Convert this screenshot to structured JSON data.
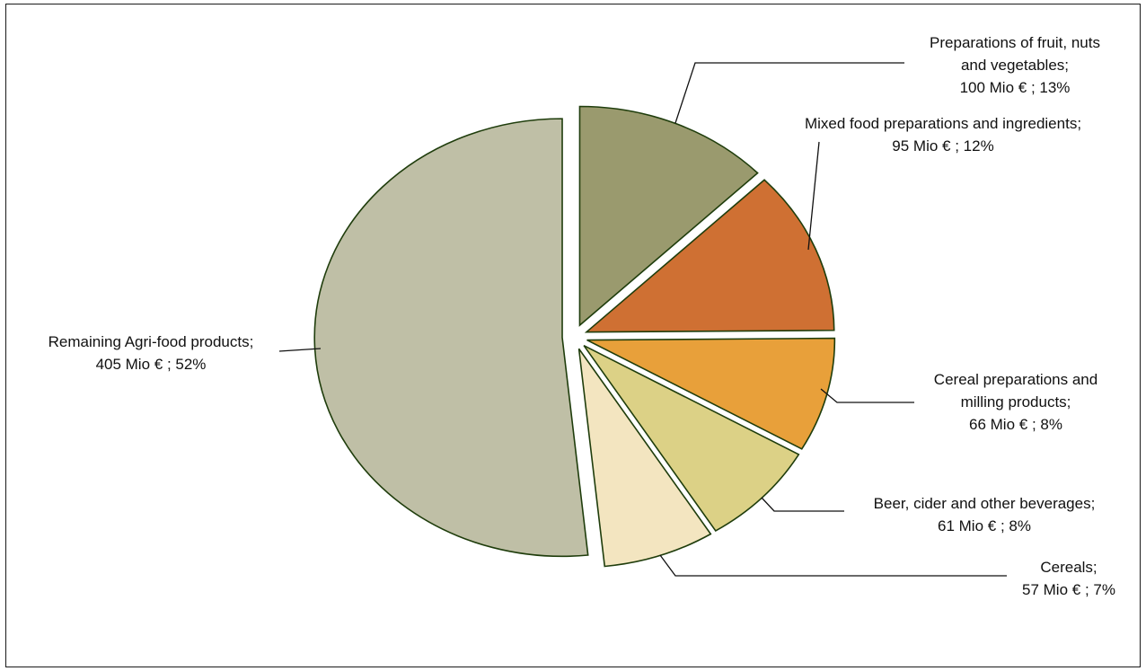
{
  "chart_data": {
    "type": "pie",
    "title": "",
    "unit": "Mio €",
    "slices": [
      {
        "key": "fruit",
        "label_lines": [
          "Preparations of fruit, nuts",
          "and vegetables;",
          "100 Mio € ; 13%"
        ],
        "value": 100,
        "percent": 13,
        "color": "#9a9a6e"
      },
      {
        "key": "mixed",
        "label_lines": [
          "Mixed food preparations and ingredients;",
          "95 Mio € ; 12%"
        ],
        "value": 95,
        "percent": 12,
        "color": "#cf7033"
      },
      {
        "key": "cerealprep",
        "label_lines": [
          "Cereal preparations and",
          "milling products;",
          "66 Mio € ; 8%"
        ],
        "value": 66,
        "percent": 8,
        "color": "#e8a03a"
      },
      {
        "key": "beer",
        "label_lines": [
          "Beer, cider and other beverages;",
          "61 Mio € ; 8%"
        ],
        "value": 61,
        "percent": 8,
        "color": "#dcd186"
      },
      {
        "key": "cereals",
        "label_lines": [
          "Cereals;",
          "57 Mio € ; 7%"
        ],
        "value": 57,
        "percent": 7,
        "color": "#f3e5c0"
      },
      {
        "key": "remaining",
        "label_lines": [
          "Remaining Agri-food products;",
          "405 Mio € ; 52%"
        ],
        "value": 405,
        "percent": 52,
        "color": "#bfbfa6"
      }
    ],
    "stroke_color": "#1f3d0c",
    "leader_color": "#111111"
  }
}
